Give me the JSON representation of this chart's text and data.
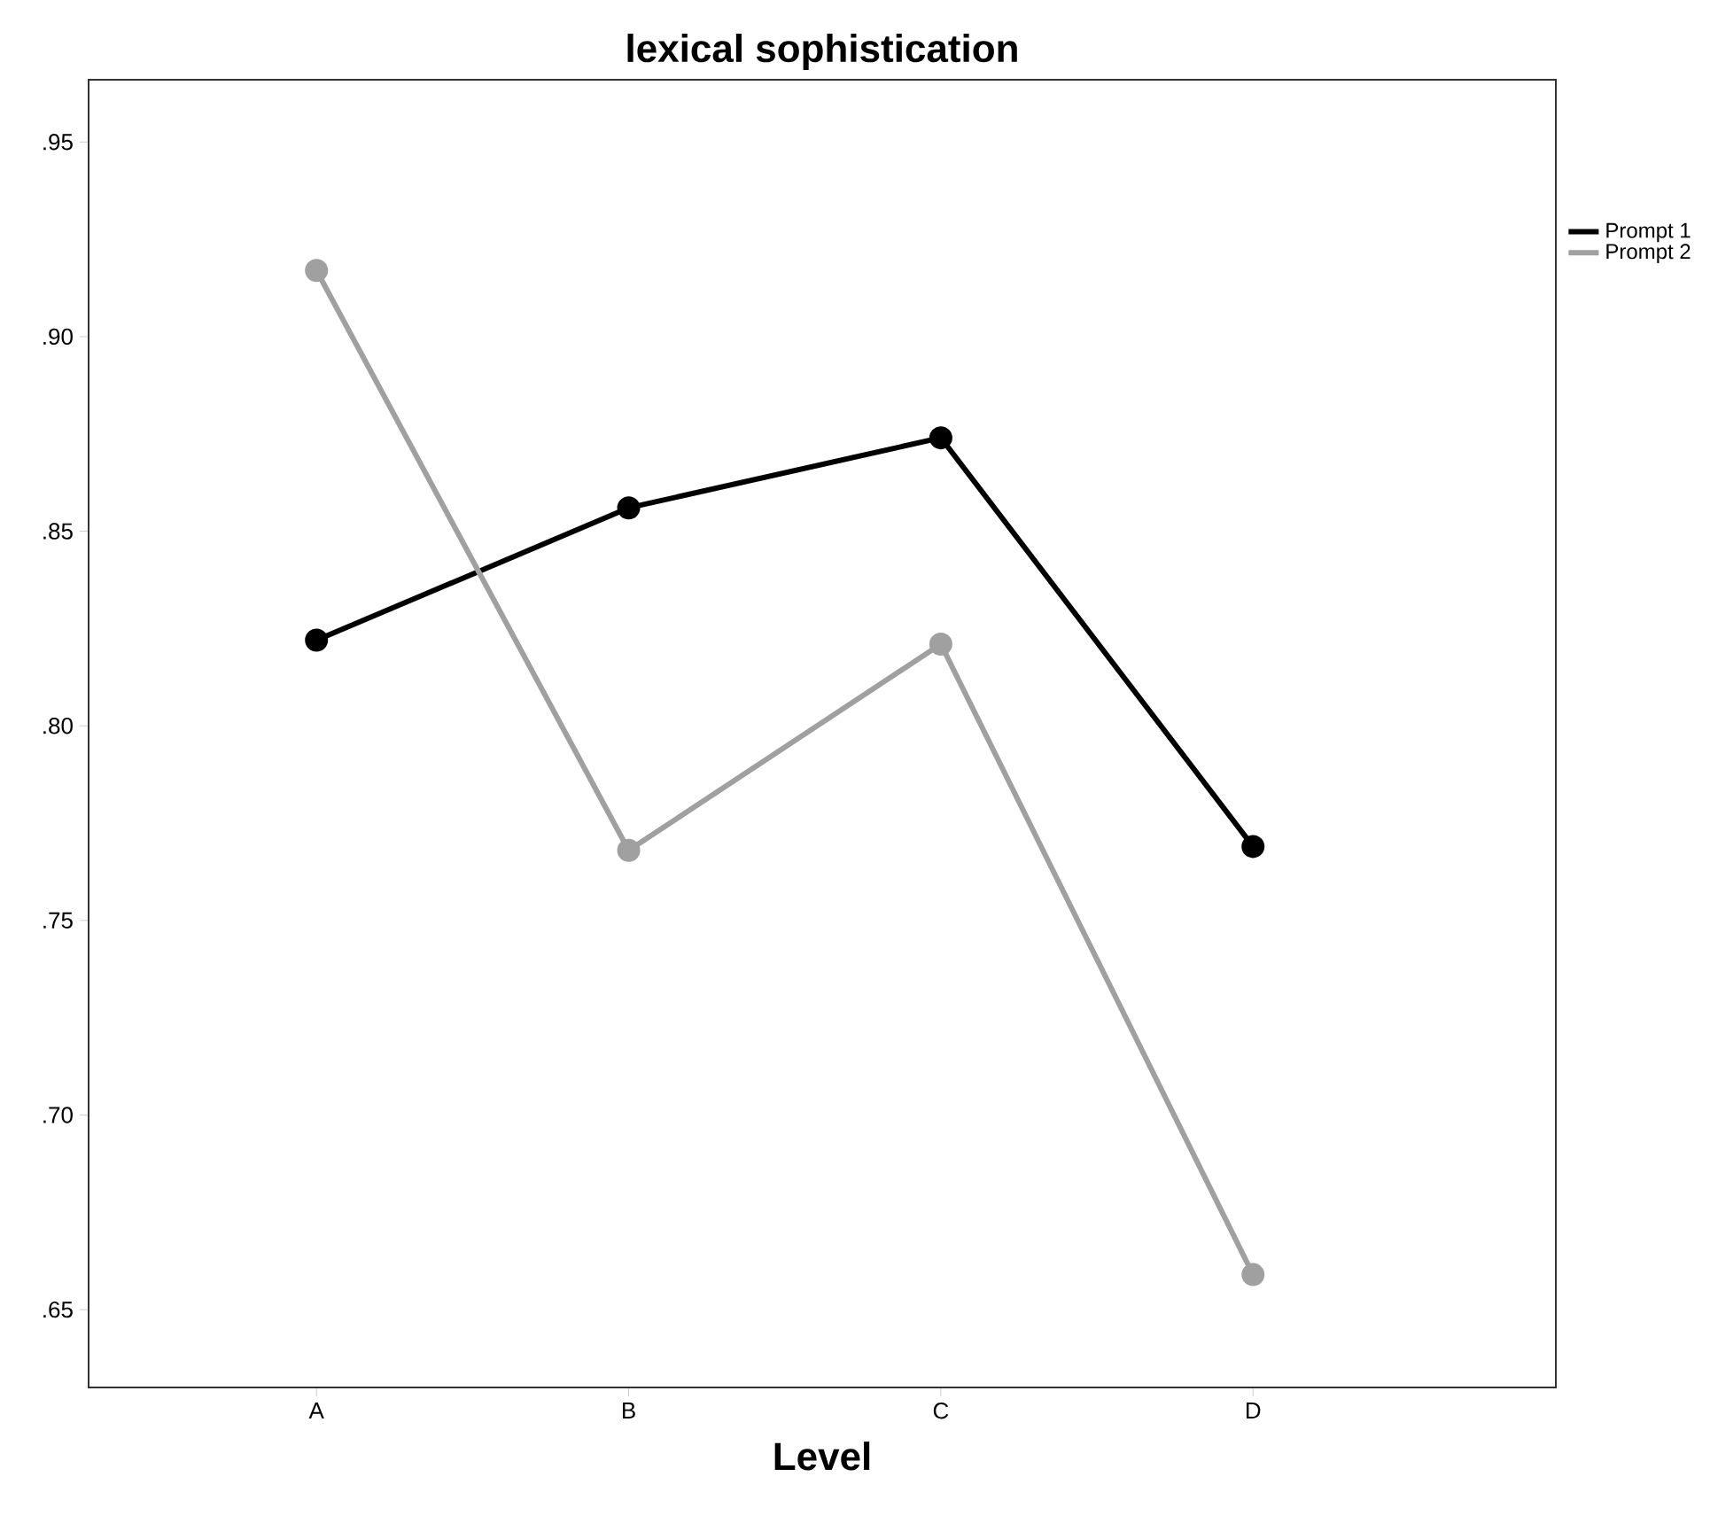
{
  "chart_data": {
    "type": "line",
    "title": "lexical sophistication",
    "xlabel": "Level",
    "categories": [
      "A",
      "B",
      "C",
      "D"
    ],
    "series": [
      {
        "name": "Prompt 1",
        "color": "#000000",
        "values": [
          0.822,
          0.856,
          0.874,
          0.769
        ]
      },
      {
        "name": "Prompt 2",
        "color": "#a0a0a0",
        "values": [
          0.917,
          0.768,
          0.821,
          0.659
        ]
      }
    ],
    "ylim": [
      0.63,
      0.966
    ],
    "yticks": [
      {
        "value": 0.65,
        "label": ".65"
      },
      {
        "value": 0.7,
        "label": ".70"
      },
      {
        "value": 0.75,
        "label": ".75"
      },
      {
        "value": 0.8,
        "label": ".80"
      },
      {
        "value": 0.85,
        "label": ".85"
      },
      {
        "value": 0.9,
        "label": ".90"
      },
      {
        "value": 0.95,
        "label": ".95"
      }
    ],
    "legend": "top right",
    "marker": "circle",
    "line_style": "solid",
    "grid": false
  }
}
